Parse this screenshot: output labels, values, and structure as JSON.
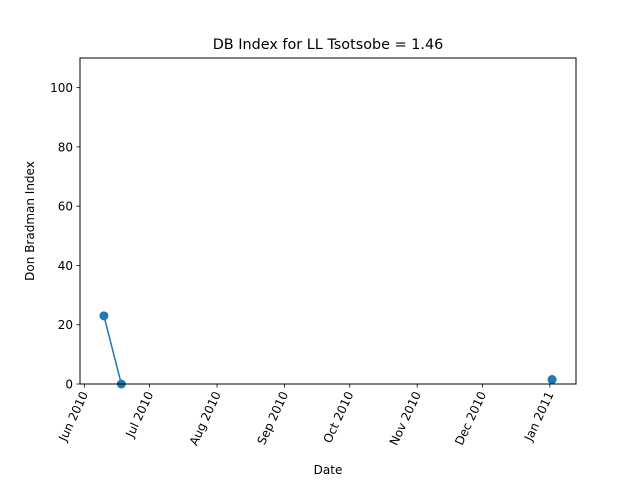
{
  "chart_data": {
    "type": "line",
    "title": "DB Index for LL Tsotsobe = 1.46",
    "xlabel": "Date",
    "ylabel": "Don Bradman Index",
    "x_tick_labels": [
      {
        "date": "2010-06-01",
        "label": "Jun 2010"
      },
      {
        "date": "2010-07-01",
        "label": "Jul 2010"
      },
      {
        "date": "2010-08-01",
        "label": "Aug 2010"
      },
      {
        "date": "2010-09-01",
        "label": "Sep 2010"
      },
      {
        "date": "2010-10-01",
        "label": "Oct 2010"
      },
      {
        "date": "2010-11-01",
        "label": "Nov 2010"
      },
      {
        "date": "2010-12-01",
        "label": "Dec 2010"
      },
      {
        "date": "2011-01-01",
        "label": "Jan 2011"
      }
    ],
    "y_ticks": [
      0,
      20,
      40,
      60,
      80,
      100
    ],
    "xlim": [
      "2010-05-30",
      "2011-01-13"
    ],
    "ylim": [
      0,
      110
    ],
    "series": [
      {
        "color": "#1f77b4",
        "points": [
          {
            "x": "2010-06-10",
            "y": 23
          },
          {
            "x": "2010-06-18",
            "y": 0
          },
          {
            "x": "2011-01-02",
            "y": 1.5
          }
        ],
        "segments": [
          [
            0,
            1
          ]
        ]
      }
    ],
    "grid": false
  }
}
